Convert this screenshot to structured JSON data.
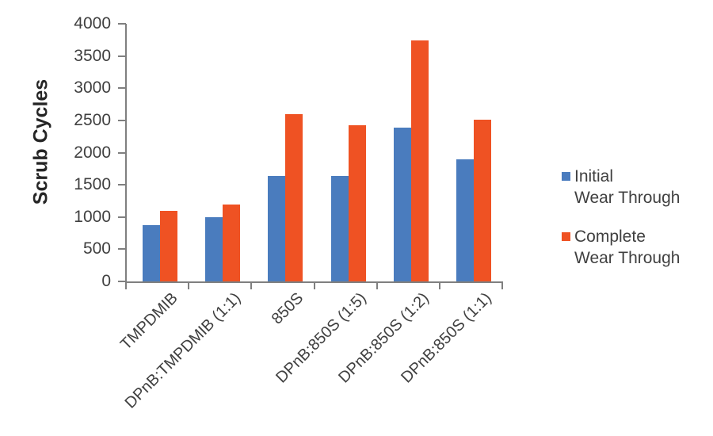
{
  "chart_data": {
    "type": "bar",
    "title": "",
    "ylabel": "Scrub Cycles",
    "xlabel": "",
    "ylim": [
      0,
      4000
    ],
    "ytick_step": 500,
    "grid": false,
    "legend_position": "right",
    "axis_color": "#7F7F7F",
    "tick_label_color": "#404040",
    "categories": [
      "TMPDMIB",
      "DPnB:TMPDMIB (1:1)",
      "850S",
      "DPnB:850S (1:5)",
      "DPnB:850S (1:2)",
      "DPnB:850S (1:1)"
    ],
    "series": [
      {
        "name": "Initial Wear Through",
        "legend_lines": [
          "Initial",
          "Wear Through"
        ],
        "color": "#4A7CBE",
        "values": [
          870,
          1000,
          1640,
          1640,
          2390,
          1890
        ]
      },
      {
        "name": "Complete Wear Through",
        "legend_lines": [
          "Complete",
          "Wear Through"
        ],
        "color": "#EF5223",
        "values": [
          1090,
          1190,
          2600,
          2420,
          3740,
          2510
        ]
      }
    ]
  }
}
